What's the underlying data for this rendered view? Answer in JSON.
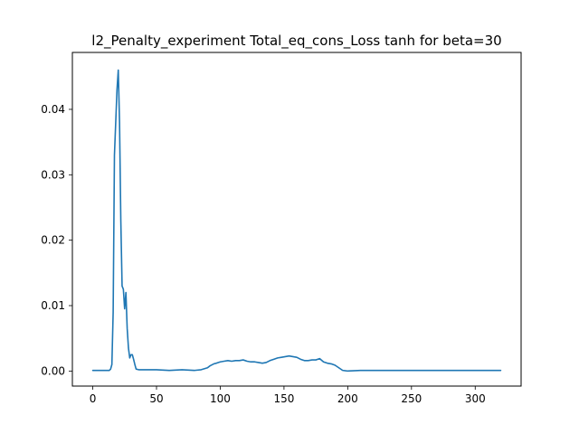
{
  "chart_data": {
    "type": "line",
    "title": "l2_Penalty_experiment Total_eq_cons_Loss tanh for beta=30",
    "xlabel": "",
    "ylabel": "",
    "xlim": [
      -16,
      336
    ],
    "ylim": [
      -0.0023,
      0.0487
    ],
    "xticks": [
      0,
      50,
      100,
      150,
      200,
      250,
      300
    ],
    "yticks": [
      0.0,
      0.01,
      0.02,
      0.03,
      0.04
    ],
    "xtick_labels": [
      "0",
      "50",
      "100",
      "150",
      "200",
      "250",
      "300"
    ],
    "ytick_labels": [
      "0.00",
      "0.01",
      "0.02",
      "0.03",
      "0.04"
    ],
    "grid": false,
    "legend": "none",
    "series": [
      {
        "color": "#1f77b4",
        "x": [
          0,
          5,
          10,
          13,
          14,
          15,
          16,
          17,
          18,
          19,
          20,
          21,
          22,
          23,
          24,
          25,
          26,
          27,
          28,
          29,
          30,
          31,
          32,
          33,
          34,
          36,
          40,
          45,
          50,
          60,
          70,
          80,
          85,
          90,
          92,
          95,
          97,
          100,
          103,
          106,
          109,
          112,
          115,
          118,
          121,
          124,
          127,
          130,
          133,
          136,
          139,
          142,
          145,
          148,
          151,
          154,
          157,
          160,
          163,
          166,
          169,
          172,
          175,
          178,
          181,
          184,
          187,
          190,
          193,
          196,
          200,
          210,
          220,
          240,
          260,
          280,
          300,
          320
        ],
        "y": [
          0.0001,
          0.0001,
          0.0001,
          0.0001,
          0.0003,
          0.001,
          0.009,
          0.033,
          0.038,
          0.043,
          0.046,
          0.038,
          0.023,
          0.013,
          0.0125,
          0.0095,
          0.012,
          0.0065,
          0.0035,
          0.002,
          0.0025,
          0.0025,
          0.0018,
          0.001,
          0.0003,
          0.0002,
          0.0002,
          0.0002,
          0.0002,
          0.0001,
          0.0002,
          0.0001,
          0.0002,
          0.0005,
          0.0008,
          0.0011,
          0.0012,
          0.0014,
          0.0015,
          0.0016,
          0.0015,
          0.0016,
          0.0016,
          0.0017,
          0.0015,
          0.0014,
          0.0014,
          0.0013,
          0.0012,
          0.0013,
          0.0016,
          0.0018,
          0.002,
          0.0021,
          0.0022,
          0.0023,
          0.0022,
          0.0021,
          0.0018,
          0.0016,
          0.0016,
          0.0017,
          0.0017,
          0.0019,
          0.0014,
          0.0012,
          0.0011,
          0.0009,
          0.0005,
          0.0001,
          0.0,
          0.0001,
          0.0001,
          0.0001,
          0.0001,
          0.0001,
          0.0001,
          0.0001
        ]
      }
    ]
  }
}
